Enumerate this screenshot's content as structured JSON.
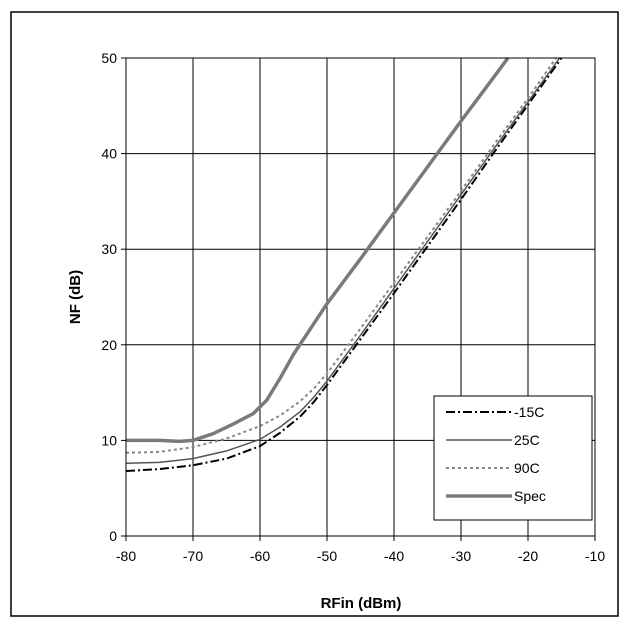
{
  "chart_data": {
    "type": "line",
    "xlabel": "RFin (dBm)",
    "ylabel": "NF (dB)",
    "xlim": [
      -80,
      -10
    ],
    "ylim": [
      0,
      50
    ],
    "xticks": [
      -80,
      -70,
      -60,
      -50,
      -40,
      -30,
      -20,
      -10
    ],
    "yticks": [
      0,
      10,
      20,
      30,
      40,
      50
    ],
    "grid": true,
    "legend_position": "bottom-right",
    "series": [
      {
        "name": "-15C",
        "color": "#000000",
        "dash": "dash-dot",
        "points": [
          [
            -80,
            6.8
          ],
          [
            -75,
            7.0
          ],
          [
            -70,
            7.4
          ],
          [
            -65,
            8.1
          ],
          [
            -60,
            9.4
          ],
          [
            -57,
            10.8
          ],
          [
            -54,
            12.5
          ],
          [
            -52,
            14.0
          ],
          [
            -50,
            15.8
          ],
          [
            -45,
            20.6
          ],
          [
            -40,
            25.4
          ],
          [
            -35,
            30.3
          ],
          [
            -30,
            35.2
          ],
          [
            -25,
            40.2
          ],
          [
            -20,
            45.1
          ],
          [
            -15,
            50.0
          ]
        ]
      },
      {
        "name": "25C",
        "color": "#555555",
        "dash": "solid",
        "points": [
          [
            -80,
            7.6
          ],
          [
            -75,
            7.7
          ],
          [
            -70,
            8.1
          ],
          [
            -65,
            8.9
          ],
          [
            -60,
            10.1
          ],
          [
            -57,
            11.4
          ],
          [
            -54,
            13.0
          ],
          [
            -52,
            14.5
          ],
          [
            -50,
            16.2
          ],
          [
            -45,
            21.0
          ],
          [
            -40,
            25.9
          ],
          [
            -35,
            30.8
          ],
          [
            -30,
            35.7
          ],
          [
            -25,
            40.6
          ],
          [
            -20,
            45.4
          ],
          [
            -15.3,
            50.0
          ]
        ]
      },
      {
        "name": "90C",
        "color": "#888888",
        "dash": "dotted",
        "points": [
          [
            -80,
            8.7
          ],
          [
            -75,
            8.8
          ],
          [
            -70,
            9.3
          ],
          [
            -65,
            10.2
          ],
          [
            -60,
            11.5
          ],
          [
            -57,
            12.6
          ],
          [
            -54,
            14.1
          ],
          [
            -52,
            15.4
          ],
          [
            -50,
            17.0
          ],
          [
            -45,
            21.7
          ],
          [
            -40,
            26.5
          ],
          [
            -35,
            31.3
          ],
          [
            -30,
            36.1
          ],
          [
            -25,
            41.0
          ],
          [
            -20,
            45.8
          ],
          [
            -15.8,
            50.0
          ]
        ]
      },
      {
        "name": "Spec",
        "color": "#7a7a7a",
        "dash": "thick",
        "points": [
          [
            -80,
            10.0
          ],
          [
            -75,
            10.0
          ],
          [
            -72,
            9.9
          ],
          [
            -70,
            10.0
          ],
          [
            -67,
            10.7
          ],
          [
            -64,
            11.7
          ],
          [
            -61,
            12.8
          ],
          [
            -59,
            14.2
          ],
          [
            -57,
            16.5
          ],
          [
            -55,
            19.0
          ],
          [
            -50,
            24.3
          ],
          [
            -45,
            29.0
          ],
          [
            -40,
            33.8
          ],
          [
            -35,
            38.6
          ],
          [
            -30,
            43.4
          ],
          [
            -25,
            48.1
          ],
          [
            -23,
            50.0
          ]
        ]
      }
    ]
  }
}
